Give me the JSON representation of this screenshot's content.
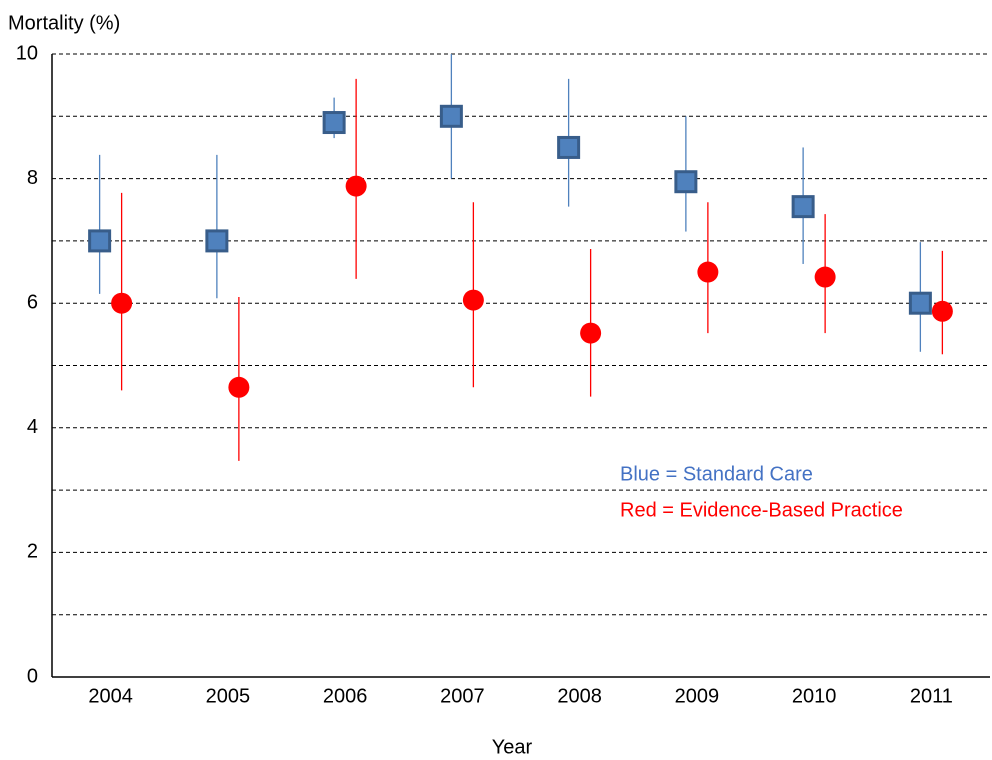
{
  "chart_data": {
    "type": "errorbar",
    "y_label": "Mortality (%)",
    "x_label": "Year",
    "categories": [
      "2004",
      "2005",
      "2006",
      "2007",
      "2008",
      "2009",
      "2010",
      "2011"
    ],
    "series": [
      {
        "name": "Blue = Standard Care",
        "color": "#4f81bd",
        "edge": "#385d8a",
        "marker": "square",
        "values": [
          7.0,
          7.0,
          8.9,
          9.0,
          8.5,
          7.95,
          7.55,
          6.0
        ],
        "low": [
          6.15,
          6.08,
          8.65,
          8.0,
          7.55,
          7.15,
          6.63,
          5.22
        ],
        "high": [
          8.38,
          8.38,
          9.3,
          10.0,
          9.6,
          9.0,
          8.5,
          6.98
        ]
      },
      {
        "name": "Red = Evidence-Based Practice",
        "color": "#ff0000",
        "edge": "#ff0000",
        "marker": "circle",
        "values": [
          6.0,
          4.65,
          7.88,
          6.05,
          5.52,
          6.5,
          6.42,
          5.87
        ],
        "low": [
          4.6,
          3.47,
          6.39,
          4.65,
          4.5,
          5.52,
          5.52,
          5.18
        ],
        "high": [
          7.77,
          6.1,
          9.6,
          7.62,
          6.87,
          7.62,
          7.43,
          6.84
        ]
      }
    ],
    "ylim": [
      0,
      10
    ],
    "yticks": [
      0,
      2,
      4,
      6,
      8,
      10
    ],
    "ygrid": [
      1,
      2,
      3,
      4,
      5,
      6,
      7,
      8,
      9,
      10
    ],
    "grid": true
  }
}
